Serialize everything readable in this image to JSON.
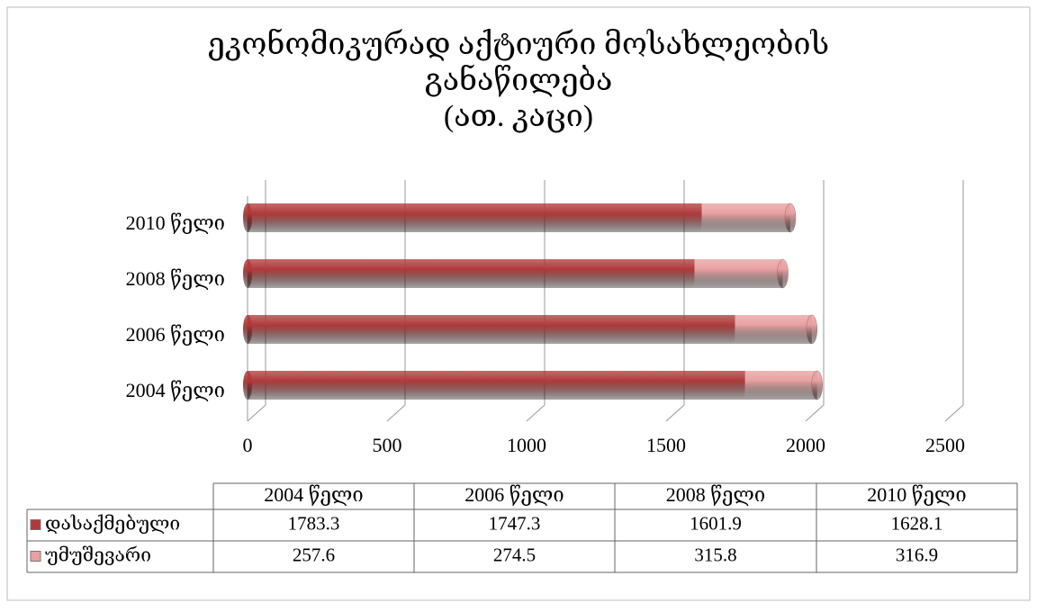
{
  "chart_data": {
    "type": "bar",
    "orientation": "horizontal",
    "stacked": true,
    "title": [
      "ეკონომიკურად აქტიური მოსახლეობის",
      "განაწილება",
      "(ათ. კაცი)"
    ],
    "categories": [
      "2004 წელი",
      "2006 წელი",
      "2008 წელი",
      "2010 წელი"
    ],
    "series": [
      {
        "name": "დასაქმებული",
        "color": "#b03a3a",
        "values": [
          1783.3,
          1747.3,
          1601.9,
          1628.1
        ]
      },
      {
        "name": "უმუშევარი",
        "color": "#e8a0a0",
        "values": [
          257.6,
          274.5,
          315.8,
          316.9
        ]
      }
    ],
    "xlim": [
      0,
      2500
    ],
    "xticks": [
      0,
      500,
      1000,
      1500,
      2000,
      2500
    ],
    "grid": true,
    "data_table": true
  }
}
